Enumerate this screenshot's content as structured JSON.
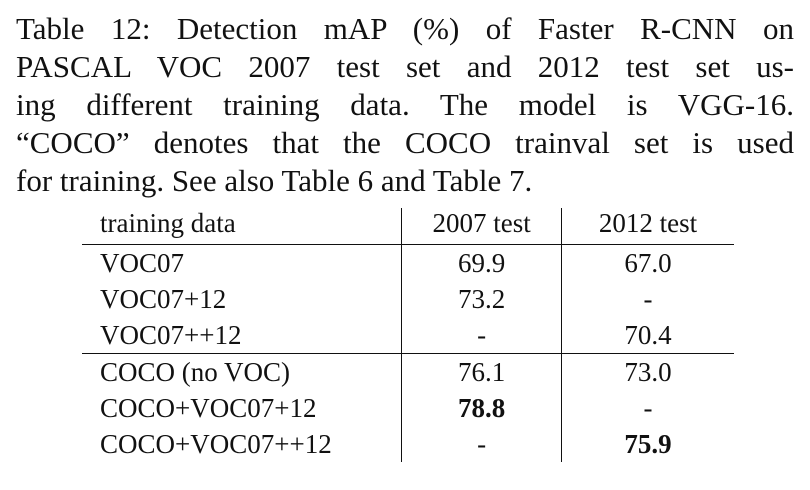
{
  "caption": {
    "lines": [
      "Table 12: Detection mAP (%) of Faster R-CNN on",
      "PASCAL VOC 2007 test set and 2012 test set us-",
      "ing different training data. The model is VGG-16.",
      "“COCO” denotes that the COCO trainval set is used",
      "for training. See also Table 6 and Table 7."
    ]
  },
  "table": {
    "headers": [
      "training data",
      "2007 test",
      "2012 test"
    ],
    "rows": [
      {
        "data": "VOC07",
        "t2007": "69.9",
        "t2012": "67.0"
      },
      {
        "data": "VOC07+12",
        "t2007": "73.2",
        "t2012": "-"
      },
      {
        "data": "VOC07++12",
        "t2007": "-",
        "t2012": "70.4"
      },
      {
        "data": "COCO (no VOC)",
        "t2007": "76.1",
        "t2012": "73.0"
      },
      {
        "data": "COCO+VOC07+12",
        "t2007": "78.8",
        "t2012": "-"
      },
      {
        "data": "COCO+VOC07++12",
        "t2007": "-",
        "t2012": "75.9"
      }
    ]
  }
}
